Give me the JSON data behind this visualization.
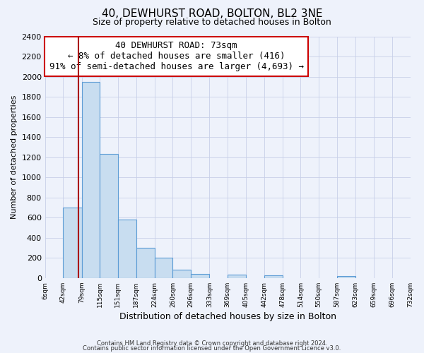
{
  "title": "40, DEWHURST ROAD, BOLTON, BL2 3NE",
  "subtitle": "Size of property relative to detached houses in Bolton",
  "xlabel": "Distribution of detached houses by size in Bolton",
  "ylabel": "Number of detached properties",
  "bin_edges": [
    6,
    42,
    79,
    115,
    151,
    187,
    224,
    260,
    296,
    333,
    369,
    405,
    442,
    478,
    514,
    550,
    587,
    623,
    659,
    696,
    732
  ],
  "bar_heights": [
    0,
    700,
    1950,
    1230,
    580,
    300,
    200,
    80,
    40,
    0,
    35,
    0,
    25,
    0,
    0,
    0,
    20,
    0,
    0,
    0
  ],
  "bar_color": "#c8ddf0",
  "bar_edge_color": "#5b9bd5",
  "bar_alpha": 0.85,
  "vline_x": 73,
  "vline_color": "#aa0000",
  "annotation_text": "40 DEWHURST ROAD: 73sqm\n← 8% of detached houses are smaller (416)\n91% of semi-detached houses are larger (4,693) →",
  "annotation_box_color": "white",
  "annotation_box_edge": "#cc0000",
  "ylim": [
    0,
    2400
  ],
  "yticks": [
    0,
    200,
    400,
    600,
    800,
    1000,
    1200,
    1400,
    1600,
    1800,
    2000,
    2200,
    2400
  ],
  "tick_labels": [
    "6sqm",
    "42sqm",
    "79sqm",
    "115sqm",
    "151sqm",
    "187sqm",
    "224sqm",
    "260sqm",
    "296sqm",
    "333sqm",
    "369sqm",
    "405sqm",
    "442sqm",
    "478sqm",
    "514sqm",
    "550sqm",
    "587sqm",
    "623sqm",
    "659sqm",
    "696sqm",
    "732sqm"
  ],
  "footer1": "Contains HM Land Registry data © Crown copyright and database right 2024.",
  "footer2": "Contains public sector information licensed under the Open Government Licence v3.0.",
  "bg_color": "#eef2fb",
  "grid_color": "#c8d0e8"
}
